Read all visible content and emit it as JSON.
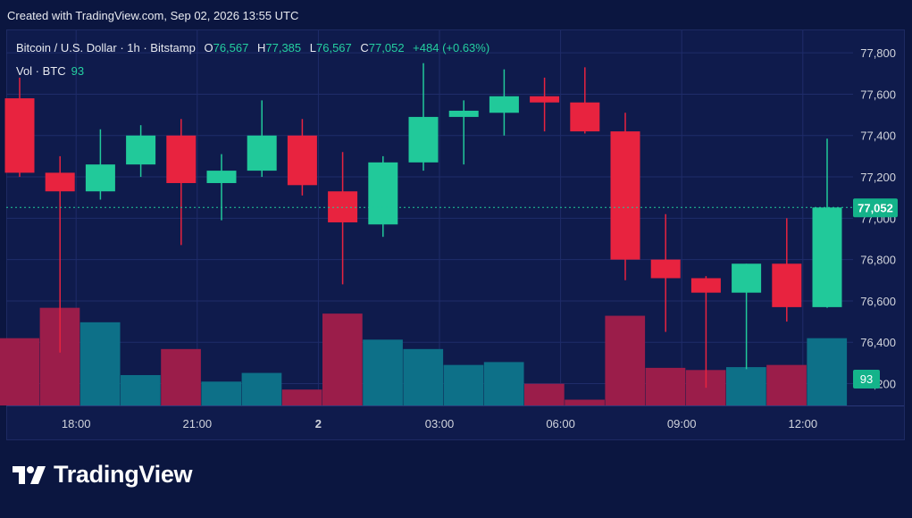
{
  "header": {
    "created_text": "Created with TradingView.com, Sep 02, 2026 13:55 UTC"
  },
  "legend": {
    "symbol": "Bitcoin / U.S. Dollar · 1h · Bitstamp",
    "o_label": "O",
    "o_value": "76,567",
    "h_label": "H",
    "h_value": "77,385",
    "l_label": "L",
    "l_value": "76,567",
    "c_label": "C",
    "c_value": "77,052",
    "change": "+484 (+0.63%)",
    "vol_label": "Vol · BTC",
    "vol_value": "93"
  },
  "brand": {
    "name": "TradingView",
    "logo_icon": "tradingview-logo-icon"
  },
  "colors": {
    "background": "#0b1640",
    "panel": "#0f1b4c",
    "grid": "#1f2c6a",
    "up": "#21c99a",
    "down": "#e8233f",
    "vol_up": "#0d7088",
    "vol_down": "#9b1d4a",
    "last_price_label": "#14b38a"
  },
  "chart_data": {
    "type": "candlestick",
    "title": "Bitcoin / U.S. Dollar · 1h · Bitstamp",
    "x_tick_labels": [
      "18:00",
      "21:00",
      "2",
      "03:00",
      "06:00",
      "09:00",
      "12:00"
    ],
    "y_tick_labels": [
      "77,800",
      "77,600",
      "77,400",
      "77,200",
      "77,000",
      "76,800",
      "76,600",
      "76,400",
      "76,200"
    ],
    "ylim": [
      76090,
      77900
    ],
    "grid": true,
    "last_price": 77052,
    "last_price_label": "77,052",
    "last_volume": 93,
    "last_volume_label": "93",
    "candles": [
      {
        "open": 77580,
        "high": 77680,
        "low": 77200,
        "close": 77220,
        "volume": 93
      },
      {
        "open": 77220,
        "high": 77300,
        "low": 76350,
        "close": 77130,
        "volume": 135
      },
      {
        "open": 77130,
        "high": 77430,
        "low": 77090,
        "close": 77260,
        "volume": 115
      },
      {
        "open": 77260,
        "high": 77450,
        "low": 77200,
        "close": 77400,
        "volume": 42
      },
      {
        "open": 77400,
        "high": 77480,
        "low": 76870,
        "close": 77170,
        "volume": 78
      },
      {
        "open": 77170,
        "high": 77310,
        "low": 76990,
        "close": 77230,
        "volume": 33
      },
      {
        "open": 77230,
        "high": 77570,
        "low": 77200,
        "close": 77400,
        "volume": 45
      },
      {
        "open": 77400,
        "high": 77480,
        "low": 77110,
        "close": 77160,
        "volume": 22
      },
      {
        "open": 77130,
        "high": 77320,
        "low": 76680,
        "close": 76980,
        "volume": 127
      },
      {
        "open": 76970,
        "high": 77300,
        "low": 76910,
        "close": 77270,
        "volume": 91
      },
      {
        "open": 77270,
        "high": 77750,
        "low": 77230,
        "close": 77490,
        "volume": 78
      },
      {
        "open": 77490,
        "high": 77570,
        "low": 77260,
        "close": 77520,
        "volume": 56
      },
      {
        "open": 77510,
        "high": 77720,
        "low": 77400,
        "close": 77590,
        "volume": 60
      },
      {
        "open": 77590,
        "high": 77680,
        "low": 77420,
        "close": 77560,
        "volume": 30
      },
      {
        "open": 77560,
        "high": 77730,
        "low": 77410,
        "close": 77420,
        "volume": 8
      },
      {
        "open": 77420,
        "high": 77510,
        "low": 76700,
        "close": 76800,
        "volume": 124
      },
      {
        "open": 76800,
        "high": 77020,
        "low": 76450,
        "close": 76710,
        "volume": 52
      },
      {
        "open": 76710,
        "high": 76720,
        "low": 76180,
        "close": 76640,
        "volume": 49
      },
      {
        "open": 76640,
        "high": 76780,
        "low": 76270,
        "close": 76780,
        "volume": 53
      },
      {
        "open": 76780,
        "high": 77000,
        "low": 76500,
        "close": 76570,
        "volume": 56
      },
      {
        "open": 76570,
        "high": 77385,
        "low": 76567,
        "close": 77052,
        "volume": 93
      }
    ]
  }
}
